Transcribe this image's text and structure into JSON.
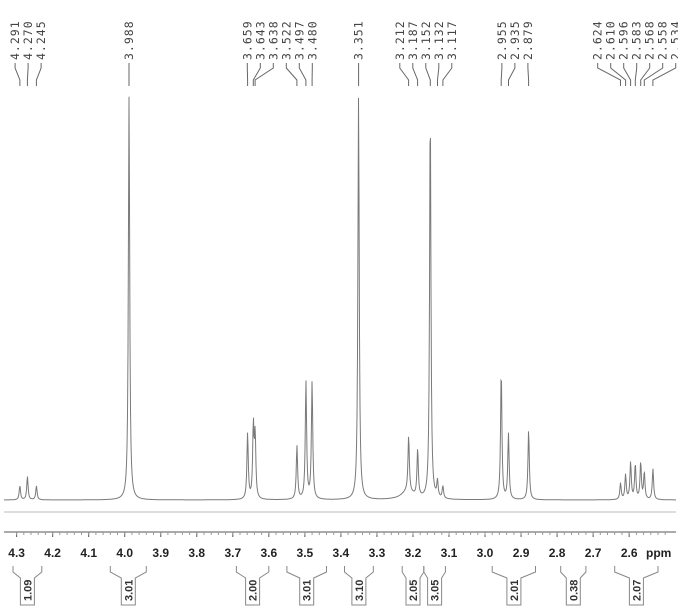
{
  "chart_data": {
    "type": "line",
    "title": "",
    "xlabel": "ppm",
    "ylabel": "",
    "xlim": [
      4.335,
      2.47
    ],
    "x_reversed": true,
    "ticks": [
      "4.3",
      "4.2",
      "4.1",
      "4.0",
      "3.9",
      "3.8",
      "3.7",
      "3.6",
      "3.5",
      "3.4",
      "3.3",
      "3.2",
      "3.1",
      "3.0",
      "2.9",
      "2.8",
      "2.7",
      "2.6"
    ],
    "peak_labels": [
      "4.291",
      "4.270",
      "4.245",
      "3.988",
      "3.659",
      "3.643",
      "3.638",
      "3.522",
      "3.497",
      "3.480",
      "3.351",
      "3.212",
      "3.187",
      "3.152",
      "3.132",
      "3.117",
      "2.955",
      "2.935",
      "2.879",
      "2.624",
      "2.610",
      "2.596",
      "2.583",
      "2.568",
      "2.558",
      "2.534"
    ],
    "peaks": [
      {
        "ppm": 4.291,
        "height": 0.034
      },
      {
        "ppm": 4.27,
        "height": 0.057
      },
      {
        "ppm": 4.245,
        "height": 0.034
      },
      {
        "ppm": 3.988,
        "height": 0.98
      },
      {
        "ppm": 3.659,
        "height": 0.16
      },
      {
        "ppm": 3.643,
        "height": 0.175
      },
      {
        "ppm": 3.638,
        "height": 0.15
      },
      {
        "ppm": 3.522,
        "height": 0.13
      },
      {
        "ppm": 3.497,
        "height": 0.285
      },
      {
        "ppm": 3.48,
        "height": 0.285
      },
      {
        "ppm": 3.351,
        "height": 0.98
      },
      {
        "ppm": 3.212,
        "height": 0.135
      },
      {
        "ppm": 3.187,
        "height": 0.115
      },
      {
        "ppm": 3.152,
        "height": 0.955
      },
      {
        "ppm": 3.132,
        "height": 0.04
      },
      {
        "ppm": 3.117,
        "height": 0.03
      },
      {
        "ppm": 2.955,
        "height": 0.315
      },
      {
        "ppm": 2.935,
        "height": 0.16
      },
      {
        "ppm": 2.879,
        "height": 0.17
      },
      {
        "ppm": 2.624,
        "height": 0.04
      },
      {
        "ppm": 2.61,
        "height": 0.06
      },
      {
        "ppm": 2.596,
        "height": 0.09
      },
      {
        "ppm": 2.583,
        "height": 0.085
      },
      {
        "ppm": 2.568,
        "height": 0.09
      },
      {
        "ppm": 2.558,
        "height": 0.065
      },
      {
        "ppm": 2.534,
        "height": 0.075
      }
    ],
    "integrals": [
      {
        "value": "1.09",
        "from": 4.31,
        "to": 4.23
      },
      {
        "value": "3.01",
        "from": 4.04,
        "to": 3.94
      },
      {
        "value": "2.00",
        "from": 3.69,
        "to": 3.6
      },
      {
        "value": "3.01",
        "from": 3.55,
        "to": 3.44
      },
      {
        "value": "3.10",
        "from": 3.39,
        "to": 3.31
      },
      {
        "value": "2.05",
        "from": 3.23,
        "to": 3.17
      },
      {
        "value": "3.05",
        "from": 3.17,
        "to": 3.11
      },
      {
        "value": "2.01",
        "from": 2.98,
        "to": 2.86
      },
      {
        "value": "0.38",
        "from": 2.79,
        "to": 2.72
      },
      {
        "value": "2.07",
        "from": 2.64,
        "to": 2.52
      }
    ],
    "grid": false,
    "legend": "none"
  }
}
